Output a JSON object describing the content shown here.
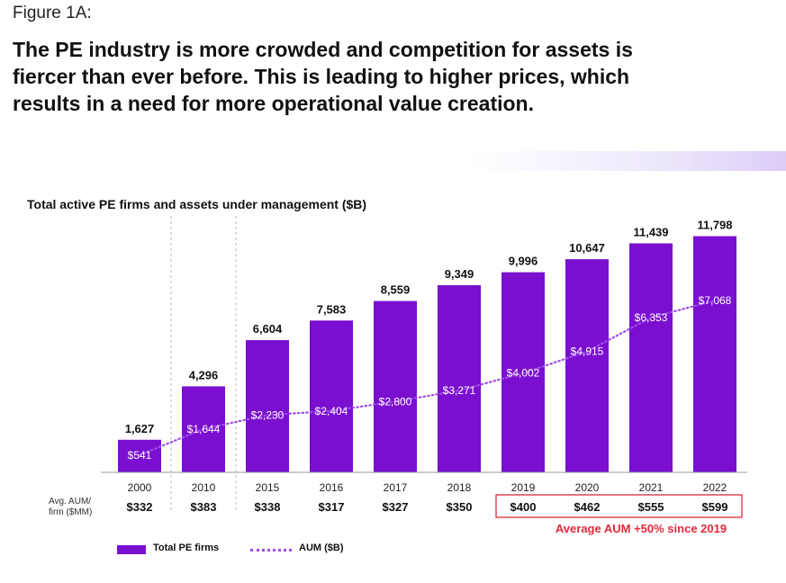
{
  "figure_label": "Figure 1A:",
  "headline": "The PE industry is more crowded and competition for assets is fiercer than ever before. This is leading to higher prices, which results in a need for more operational value creation.",
  "chart_data": {
    "type": "bar",
    "title": "Total active PE firms and assets under management ($B)",
    "categories": [
      "2000",
      "2010",
      "2015",
      "2016",
      "2017",
      "2018",
      "2019",
      "2020",
      "2021",
      "2022"
    ],
    "series": [
      {
        "name": "Total PE firms",
        "type": "bar",
        "values": [
          1627,
          4296,
          6604,
          7583,
          8559,
          9349,
          9996,
          10647,
          11439,
          11798
        ],
        "labels": [
          "1,627",
          "4,296",
          "6,604",
          "7,583",
          "8,559",
          "9,349",
          "9,996",
          "10,647",
          "11,439",
          "11,798"
        ],
        "color": "#7a0fd0"
      },
      {
        "name": "AUM ($B)",
        "type": "line",
        "style": "dotted",
        "values": [
          541,
          1644,
          2230,
          2404,
          2800,
          3271,
          4002,
          4915,
          6353,
          7068
        ],
        "labels": [
          "$541",
          "$1,644",
          "$2,230",
          "$2,404",
          "$2,800",
          "$3,271",
          "$4,002",
          "$4,915",
          "$6,353",
          "$7,068"
        ],
        "color": "#a04de8"
      }
    ],
    "avg_aum_label": "Avg. AUM/ firm ($MM)",
    "avg_aum_values": [
      "$332",
      "$383",
      "$338",
      "$317",
      "$327",
      "$350",
      "$400",
      "$462",
      "$555",
      "$599"
    ],
    "annotation": "Average AUM +50% since 2019",
    "highlight_color": "#e0283c",
    "legend": [
      {
        "label": "Total PE firms",
        "kind": "bar"
      },
      {
        "label": "AUM ($B)",
        "kind": "dotted-line"
      }
    ]
  }
}
